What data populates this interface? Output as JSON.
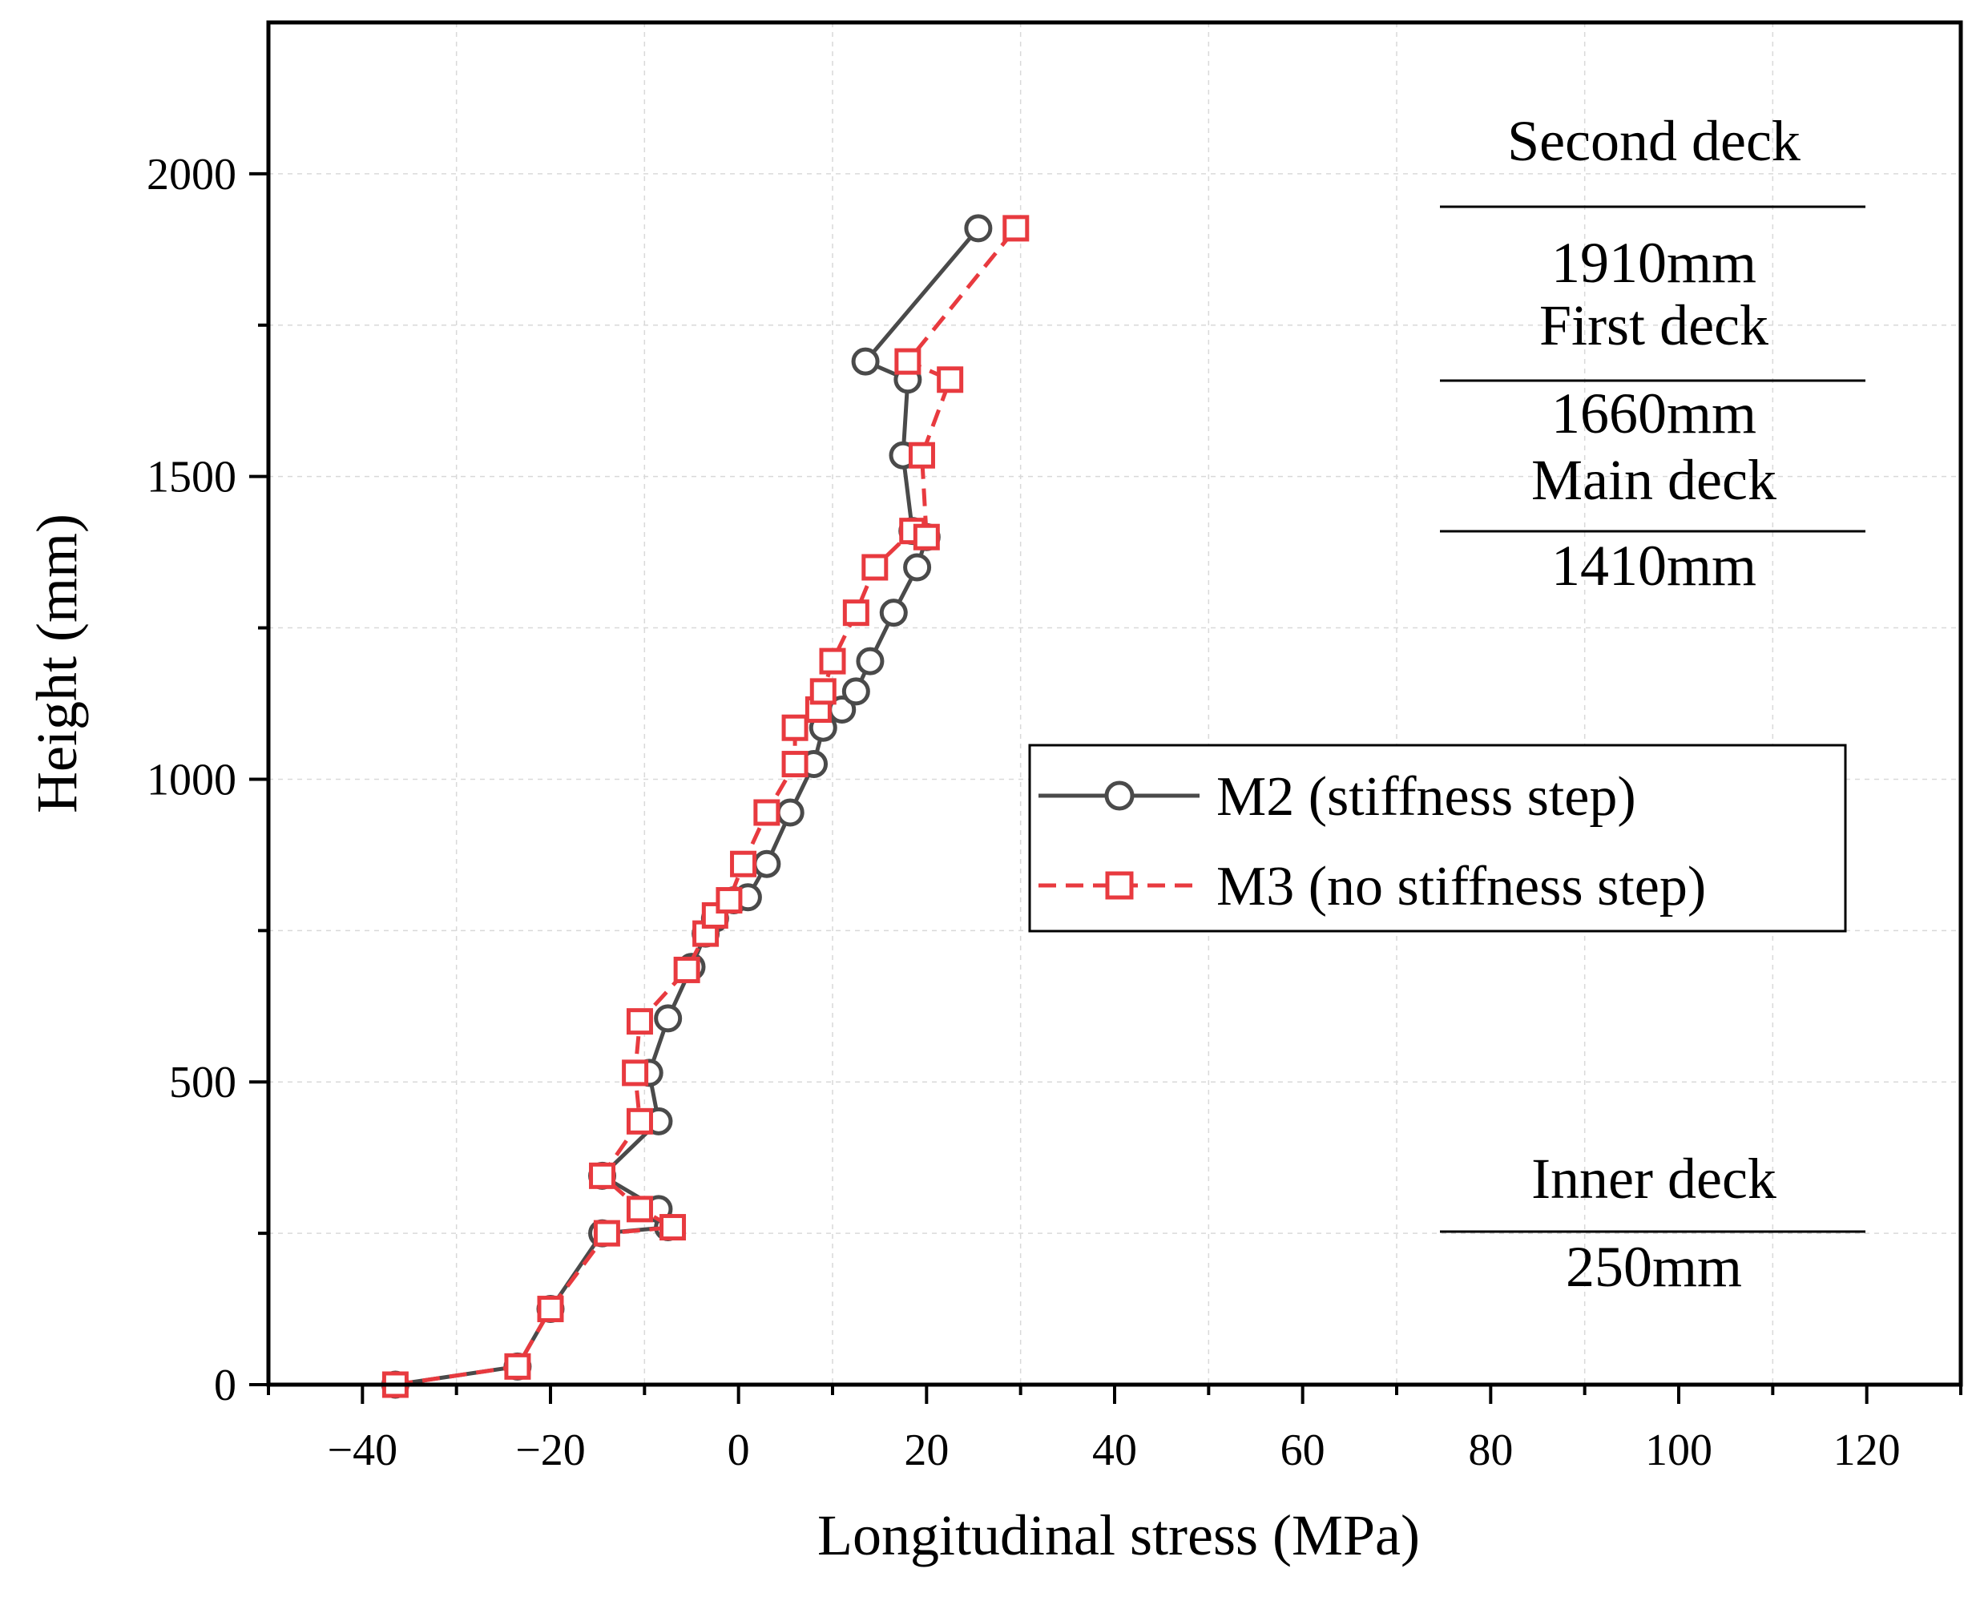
{
  "chart_data": {
    "type": "line",
    "xlabel": "Longitudinal stress (MPa)",
    "ylabel": "Height (mm)",
    "xlim": [
      -50,
      130
    ],
    "ylim": [
      0,
      2250
    ],
    "xticks": [
      -40,
      -20,
      0,
      20,
      40,
      60,
      80,
      100,
      120
    ],
    "xtick_labels": [
      "−40",
      "−20",
      "0",
      "20",
      "40",
      "60",
      "80",
      "100",
      "120"
    ],
    "yticks": [
      0,
      500,
      1000,
      1500,
      2000
    ],
    "ytick_labels": [
      "0",
      "500",
      "1000",
      "1500",
      "2000"
    ],
    "grid": true,
    "legend_position": "center-right",
    "series": [
      {
        "name": "M2 (stiffness step)",
        "color": "#4a4a4a",
        "line_style": "solid",
        "marker": "circle",
        "x": [
          -36.5,
          -23.5,
          -20,
          -14.5,
          -7.5,
          -8.5,
          -14.5,
          -8.5,
          -9.5,
          -7.5,
          -5,
          -3.5,
          -2.5,
          -0.5,
          1,
          3,
          5.5,
          8,
          9,
          11,
          12.5,
          14,
          16.5,
          19,
          20,
          18.5,
          17.5,
          18,
          13.5,
          25.5
        ],
        "y": [
          0,
          30,
          125,
          250,
          260,
          290,
          345,
          435,
          515,
          605,
          690,
          745,
          770,
          800,
          805,
          860,
          945,
          1025,
          1085,
          1115,
          1145,
          1195,
          1275,
          1350,
          1400,
          1410,
          1535,
          1660,
          1690,
          1910
        ]
      },
      {
        "name": "M3 (no stiffness step)",
        "color": "#e83a3f",
        "line_style": "dashed",
        "marker": "square",
        "x": [
          -36.5,
          -23.5,
          -20,
          -14,
          -7,
          -10.5,
          -14.5,
          -10.5,
          -11,
          -10.5,
          -5.5,
          -3.5,
          -2.5,
          -1,
          0.5,
          3,
          6,
          6,
          8.5,
          9,
          10,
          12.5,
          14.5,
          18.5,
          20,
          19.5,
          22.5,
          18,
          29.5
        ],
        "y": [
          0,
          30,
          125,
          250,
          260,
          290,
          345,
          435,
          515,
          600,
          685,
          745,
          775,
          800,
          860,
          945,
          1025,
          1085,
          1115,
          1145,
          1195,
          1275,
          1350,
          1410,
          1400,
          1535,
          1660,
          1690,
          1910
        ]
      }
    ],
    "annotations": [
      {
        "label": "Second deck",
        "value": "1910mm"
      },
      {
        "label": "First deck",
        "value": "1660mm"
      },
      {
        "label": "Main deck",
        "value": "1410mm"
      },
      {
        "label": "Inner deck",
        "value": "250mm"
      }
    ]
  }
}
